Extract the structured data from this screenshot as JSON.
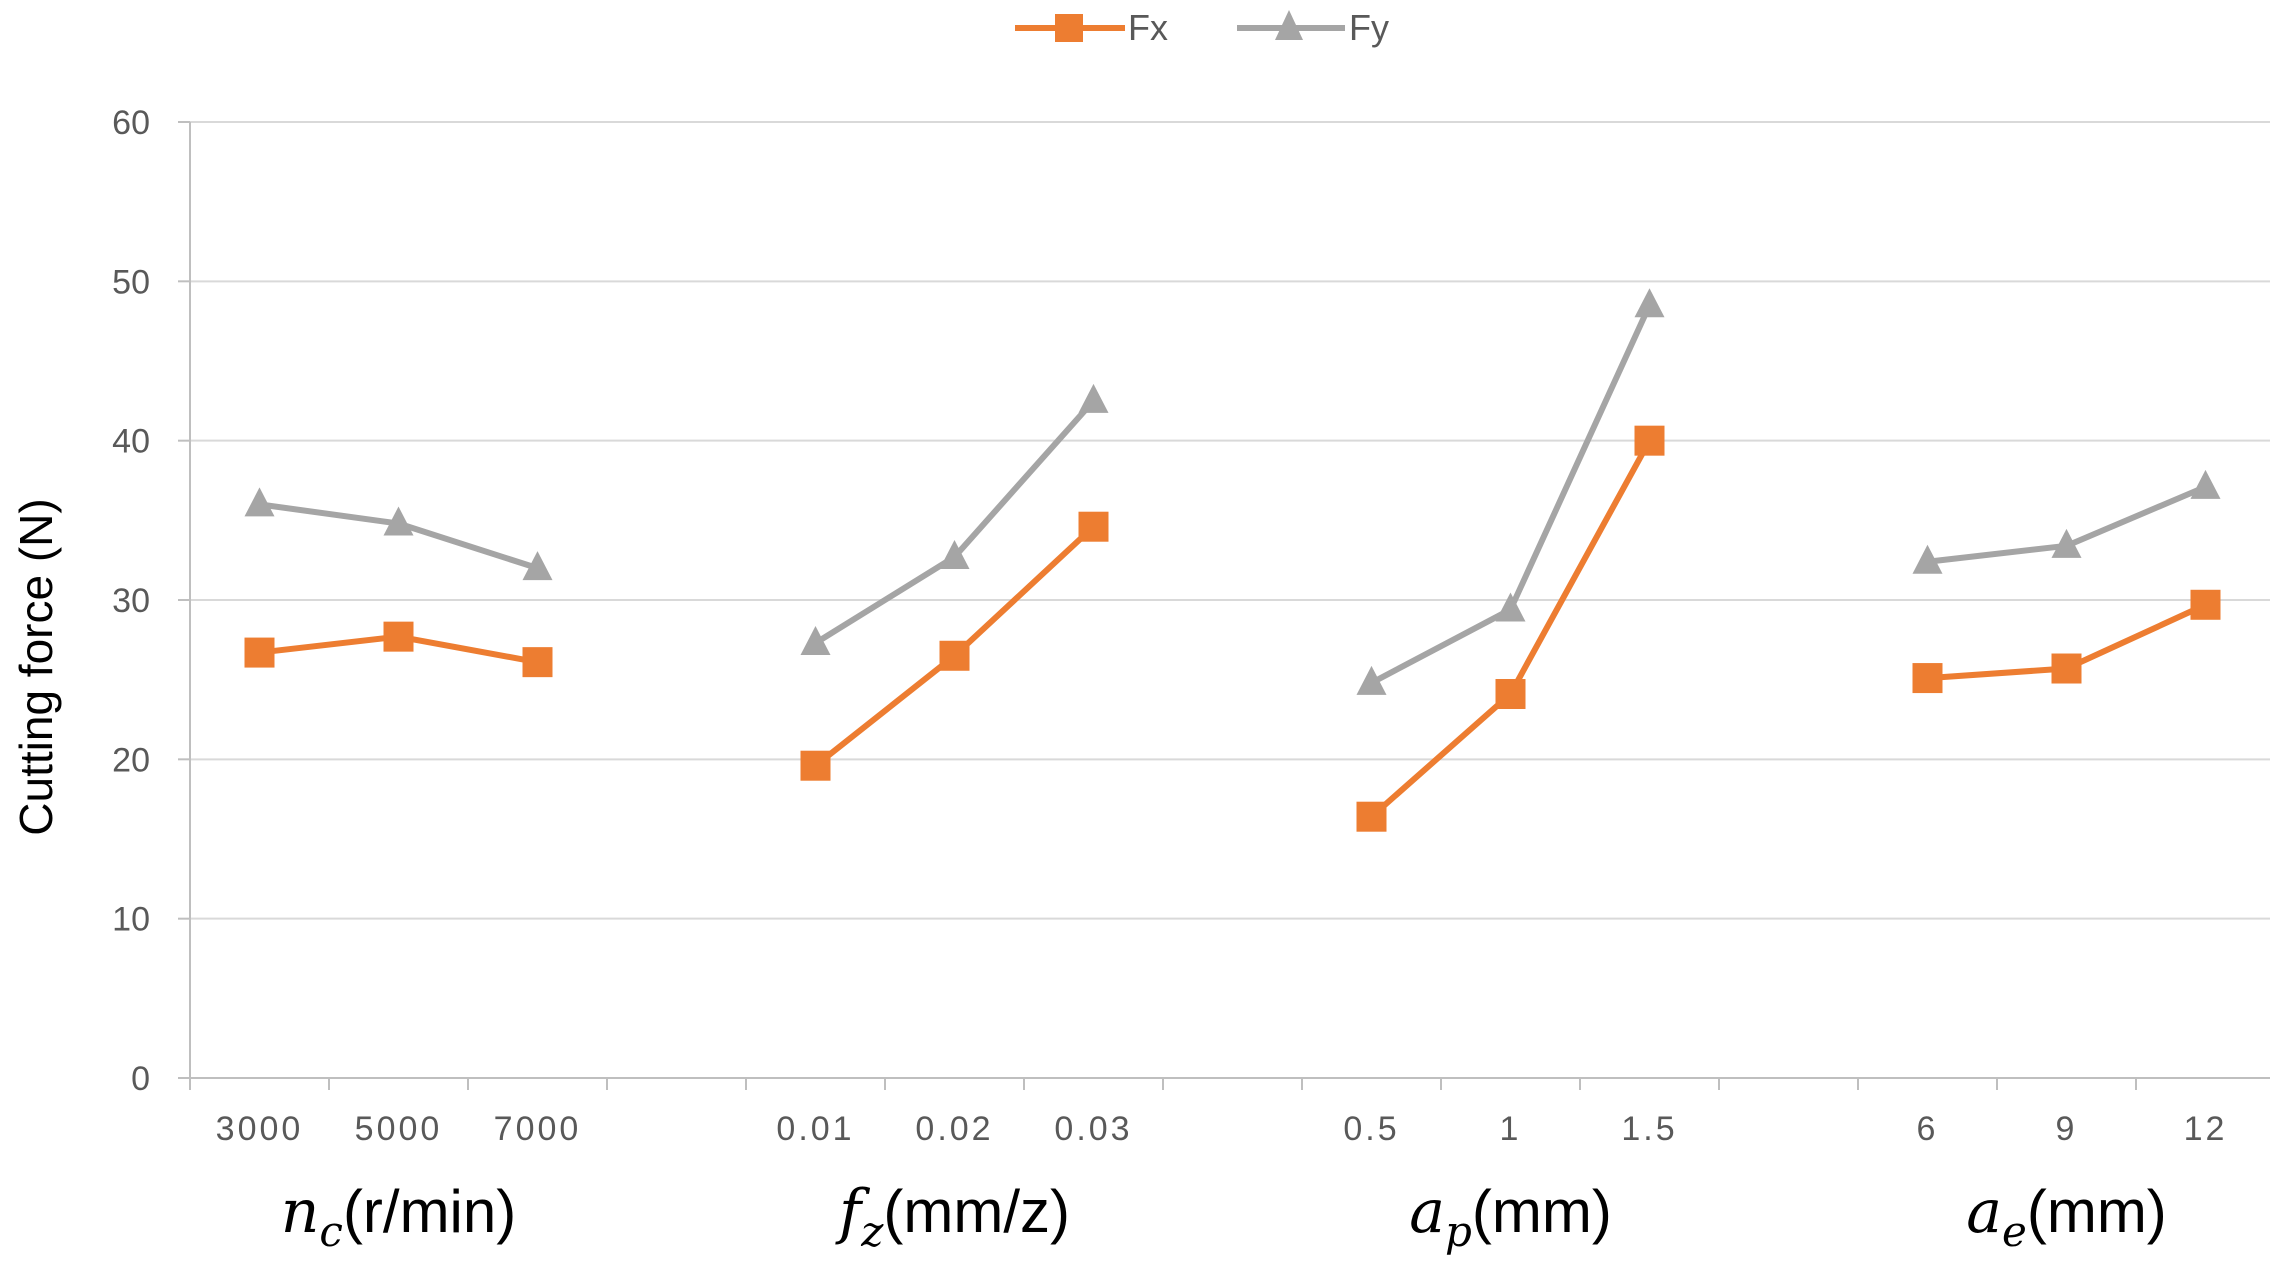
{
  "chart_data": {
    "type": "line",
    "title": "",
    "ylabel": "Cutting force (N)",
    "ylim": [
      0,
      60
    ],
    "yticks": [
      "0",
      "10",
      "20",
      "30",
      "40",
      "50",
      "60"
    ],
    "grid": true,
    "legend_position": "top-center",
    "colors": {
      "Fx": "#ED7D31",
      "Fy": "#A5A5A5",
      "grid": "#D9D9D9",
      "axis": "#BFBFBF"
    },
    "groups": [
      {
        "label": {
          "italic": "n",
          "sub": "c",
          "rest": "(r/min)"
        },
        "categories": [
          "3000",
          "5000",
          "7000"
        ],
        "series": [
          {
            "name": "Fx",
            "values": [
              26.7,
              27.7,
              26.1
            ]
          },
          {
            "name": "Fy",
            "values": [
              36.0,
              34.8,
              32.0
            ]
          }
        ]
      },
      {
        "label": {
          "italic": "f",
          "sub": "z",
          "rest": "(mm/z)"
        },
        "categories": [
          "0.01",
          "0.02",
          "0.03"
        ],
        "series": [
          {
            "name": "Fx",
            "values": [
              19.6,
              26.5,
              34.6
            ]
          },
          {
            "name": "Fy",
            "values": [
              27.3,
              32.7,
              42.5
            ]
          }
        ]
      },
      {
        "label": {
          "italic": "a",
          "sub": "p",
          "rest": "(mm)"
        },
        "categories": [
          "0.5",
          "1",
          "1.5"
        ],
        "series": [
          {
            "name": "Fx",
            "values": [
              16.4,
              24.1,
              40.0
            ]
          },
          {
            "name": "Fy",
            "values": [
              24.8,
              29.4,
              48.5
            ]
          }
        ]
      },
      {
        "label": {
          "italic": "a",
          "sub": "e",
          "rest": "(mm)"
        },
        "categories": [
          "6",
          "9",
          "12"
        ],
        "series": [
          {
            "name": "Fx",
            "values": [
              25.1,
              25.7,
              29.7
            ]
          },
          {
            "name": "Fy",
            "values": [
              32.4,
              33.4,
              37.1
            ]
          }
        ]
      }
    ],
    "legend": [
      {
        "name": "Fx",
        "marker": "square"
      },
      {
        "name": "Fy",
        "marker": "triangle"
      }
    ]
  }
}
